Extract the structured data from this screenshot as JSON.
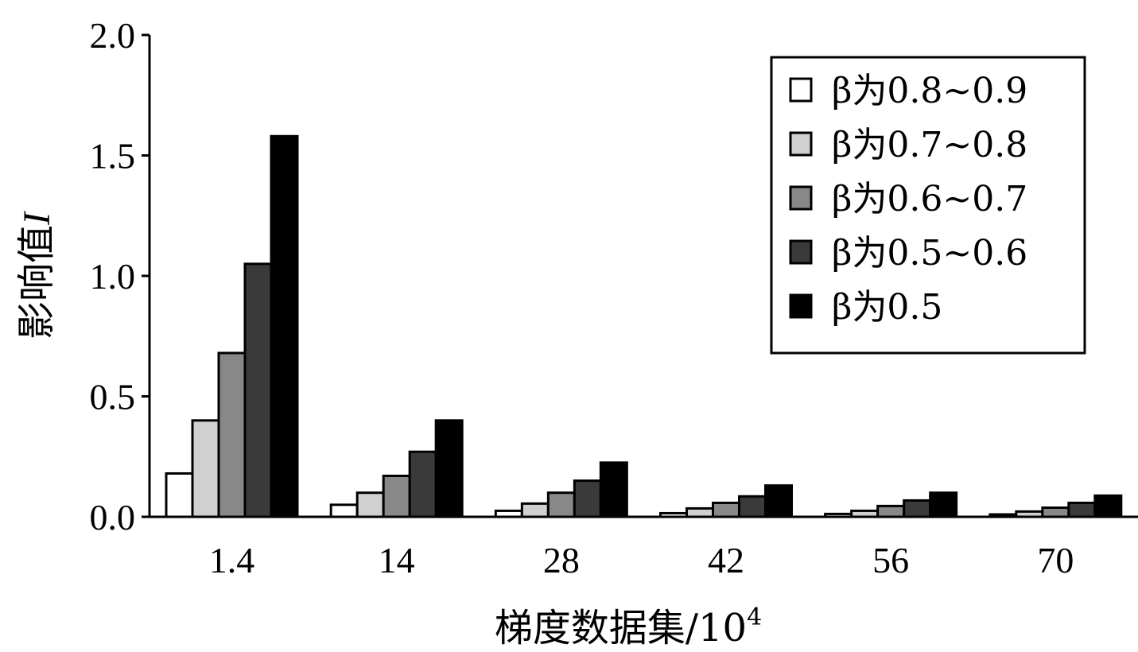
{
  "chart_data": {
    "type": "bar",
    "categories": [
      "1.4",
      "14",
      "28",
      "42",
      "56",
      "70"
    ],
    "series": [
      {
        "name": "β为0.8~0.9",
        "color": "#ffffff",
        "values": [
          0.18,
          0.05,
          0.025,
          0.015,
          0.012,
          0.01
        ]
      },
      {
        "name": "β为0.7~0.8",
        "color": "#d0d0d0",
        "values": [
          0.4,
          0.1,
          0.055,
          0.035,
          0.025,
          0.022
        ]
      },
      {
        "name": "β为0.6~0.7",
        "color": "#888888",
        "values": [
          0.68,
          0.17,
          0.1,
          0.058,
          0.045,
          0.038
        ]
      },
      {
        "name": "β为0.5~0.6",
        "color": "#3a3a3a",
        "values": [
          1.05,
          0.27,
          0.15,
          0.085,
          0.068,
          0.058
        ]
      },
      {
        "name": "β为0.5",
        "color": "#000000",
        "values": [
          1.58,
          0.4,
          0.225,
          0.13,
          0.1,
          0.088
        ]
      }
    ],
    "xlabel": "梯度数据集/10",
    "xlabel_superscript": "4",
    "ylabel": "影响值",
    "ylabel_italic": "I",
    "ylim": [
      0,
      2.0
    ],
    "yticks": [
      "0.0",
      "0.5",
      "1.0",
      "1.5",
      "2.0"
    ],
    "grid": false,
    "legend_position": "top-right"
  }
}
